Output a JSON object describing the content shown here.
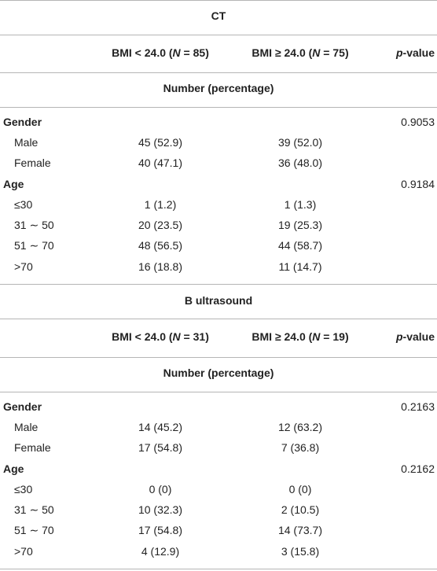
{
  "sections": [
    {
      "title": "CT",
      "col1_label": "BMI < 24.0 (",
      "col1_n": "N",
      "col1_tail": " = 85)",
      "col2_label": "BMI ≥ 24.0 (",
      "col2_n": "N",
      "col2_tail": " = 75)",
      "p_italic": "p",
      "p_tail": "-value",
      "subheader": "Number (percentage)",
      "gender": {
        "label": "Gender",
        "p": "0.9053",
        "rows": [
          {
            "label": "Male",
            "a": "45 (52.9)",
            "b": "39 (52.0)"
          },
          {
            "label": "Female",
            "a": "40 (47.1)",
            "b": "36 (48.0)"
          }
        ]
      },
      "age": {
        "label": "Age",
        "p": "0.9184",
        "rows": [
          {
            "label": "≤30",
            "a": "1 (1.2)",
            "b": "1 (1.3)"
          },
          {
            "label": "31 ∼ 50",
            "a": "20 (23.5)",
            "b": "19 (25.3)"
          },
          {
            "label": "51 ∼ 70",
            "a": "48 (56.5)",
            "b": "44 (58.7)"
          },
          {
            "label": ">70",
            "a": "16 (18.8)",
            "b": "11 (14.7)"
          }
        ]
      }
    },
    {
      "title": "B ultrasound",
      "col1_label": "BMI < 24.0 (",
      "col1_n": "N",
      "col1_tail": " = 31)",
      "col2_label": "BMI ≥ 24.0 (",
      "col2_n": "N",
      "col2_tail": " = 19)",
      "p_italic": "p",
      "p_tail": "-value",
      "subheader": "Number (percentage)",
      "gender": {
        "label": "Gender",
        "p": "0.2163",
        "rows": [
          {
            "label": "Male",
            "a": "14 (45.2)",
            "b": "12 (63.2)"
          },
          {
            "label": "Female",
            "a": "17 (54.8)",
            "b": "7 (36.8)"
          }
        ]
      },
      "age": {
        "label": "Age",
        "p": "0.2162",
        "rows": [
          {
            "label": "≤30",
            "a": "0 (0)",
            "b": "0 (0)"
          },
          {
            "label": "31 ∼ 50",
            "a": "10 (32.3)",
            "b": "2 (10.5)"
          },
          {
            "label": "51 ∼ 70",
            "a": "17 (54.8)",
            "b": "14 (73.7)"
          },
          {
            "label": ">70",
            "a": "4 (12.9)",
            "b": "3 (15.8)"
          }
        ]
      }
    }
  ]
}
